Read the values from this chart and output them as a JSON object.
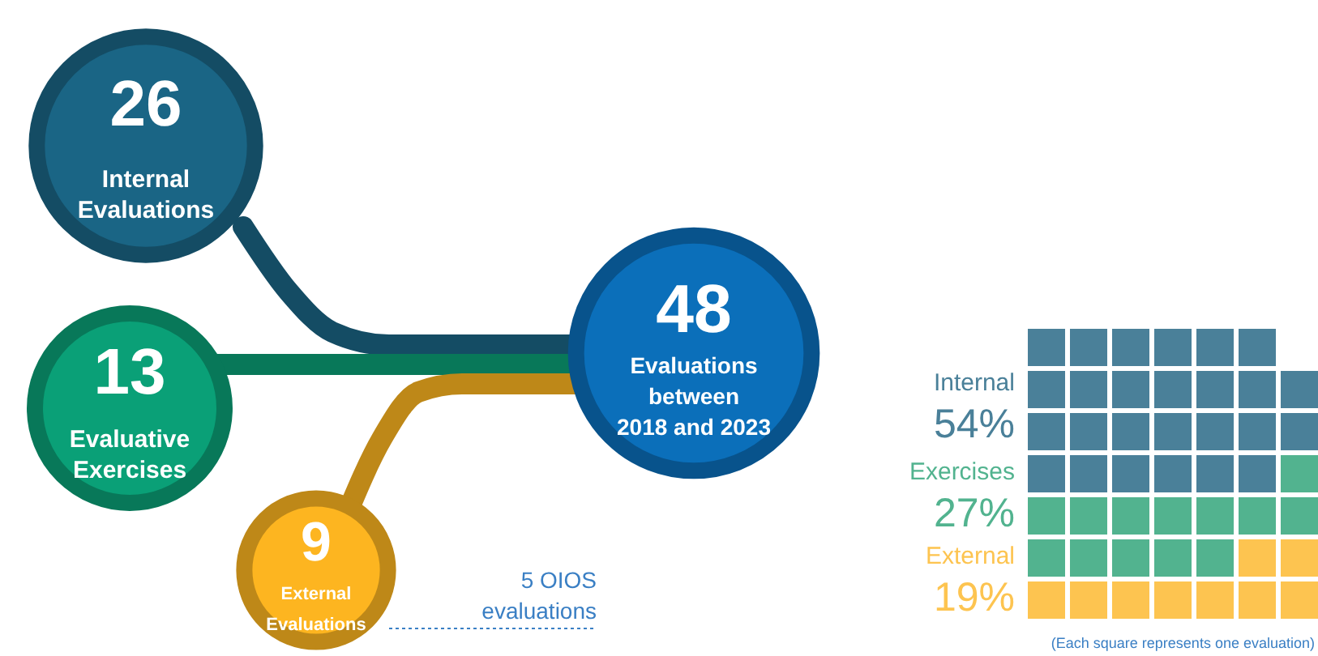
{
  "chart_data": [
    {
      "type": "other",
      "categories": [
        "Internal Evaluations",
        "Evaluative Exercises",
        "External Evaluations",
        "Evaluations between 2018 and 2023"
      ],
      "values": [
        26,
        13,
        9,
        48
      ],
      "colors": [
        "#1a6585",
        "#0aa077",
        "#fdb520",
        "#0b6fba"
      ],
      "data_labels": true,
      "annotations": [
        "5 OIOS evaluations"
      ]
    },
    {
      "type": "other",
      "categories": [
        "Internal",
        "Exercises",
        "External"
      ],
      "values": [
        54,
        27,
        19
      ],
      "colors": [
        "#4a8099",
        "#52b38f",
        "#fdc450"
      ],
      "value_labels": [
        "54%",
        "27%",
        "19%"
      ],
      "annotations": [
        "(Each square represents one evaluation)"
      ]
    }
  ]
}
